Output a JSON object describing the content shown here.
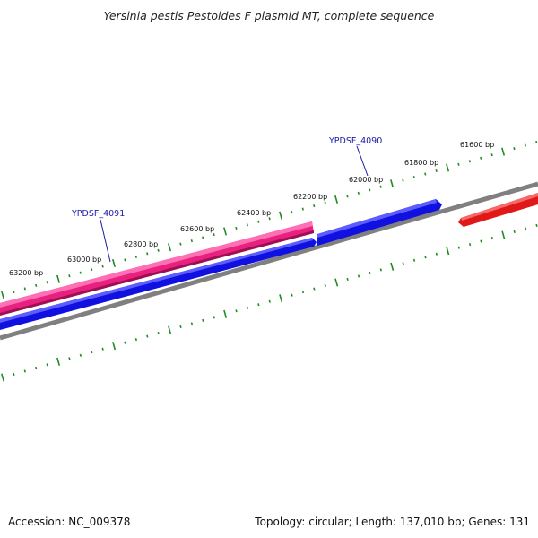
{
  "title": "Yersinia pestis Pestoides F plasmid MT, complete sequence",
  "footer": {
    "accession": "Accession: NC_009378",
    "summary": "Topology: circular; Length: 137,010 bp; Genes: 131"
  },
  "scale_labels": [
    "63200 bp",
    "63000 bp",
    "62800 bp",
    "62600 bp",
    "62400 bp",
    "62200 bp",
    "62000 bp",
    "61800 bp",
    "61600 bp"
  ],
  "genes": [
    {
      "name": "YPDSF_4091",
      "color": "#e8207f"
    },
    {
      "name": "YPDSF_4090",
      "color": "#1010e0"
    }
  ],
  "colors": {
    "backbone": "#808080",
    "ticks": "#228b22",
    "forward_gene": "#e8207f",
    "reverse_gene": "#1010e0",
    "red_gene": "#e01818"
  }
}
